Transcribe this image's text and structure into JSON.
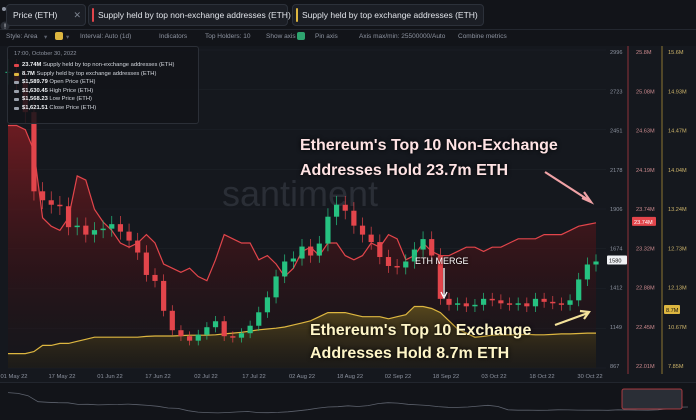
{
  "tabs": [
    {
      "label": "Price (ETH)",
      "color": "#9aa0ab"
    },
    {
      "label": "Supply held by top non-exchange addresses (ETH)",
      "color": "#e2454b"
    },
    {
      "label": "Supply held by top exchange addresses (ETH)",
      "color": "#ddb640"
    }
  ],
  "toolbar": {
    "style": "Style: Area",
    "interval": "Interval: Auto (1d)",
    "indicators": "Indicators",
    "top_holders": "Top Holders: 10",
    "show_axis": "Show axis",
    "pin_axis": "Pin axis",
    "axis_minmax": "Axis max/min: 25500000/Auto",
    "combine": "Combine metrics"
  },
  "legend": {
    "date": "17:00, October 30, 2022",
    "rows": [
      {
        "value": "23.74M",
        "label": "Supply held by top non-exchange addresses (ETH)",
        "color": "#e2454b"
      },
      {
        "value": "8.7M",
        "label": "Supply held by top exchange addresses (ETH)",
        "color": "#ddb640"
      },
      {
        "value": "$1,589.79",
        "label": "Open Price (ETH)",
        "color": "#9aa0ab"
      },
      {
        "value": "$1,630.45",
        "label": "High Price (ETH)",
        "color": "#9aa0ab"
      },
      {
        "value": "$1,568.23",
        "label": "Low Price (ETH)",
        "color": "#9aa0ab"
      },
      {
        "value": "$1,621.51",
        "label": "Close Price (ETH)",
        "color": "#9aa0ab"
      }
    ]
  },
  "watermark": "santiment",
  "annotations": {
    "non_exchange": [
      "Ethereum's Top 10 Non-Exchange",
      "Addresses Hold 23.7m ETH"
    ],
    "exchange": [
      "Ethereum's Top 10 Exchange",
      "Addresses Hold 8.7m ETH"
    ],
    "merge": "ETH MERGE"
  },
  "chart_data": {
    "type": "line",
    "x_ticks": [
      "01 May 22",
      "17 May 22",
      "01 Jun 22",
      "17 Jun 22",
      "02 Jul 22",
      "17 Jul 22",
      "02 Aug 22",
      "18 Aug 22",
      "02 Sep 22",
      "18 Sep 22",
      "03 Oct 22",
      "18 Oct 22",
      "30 Oct 22"
    ],
    "price_axis_ticks": [
      "2996",
      "2723",
      "2451",
      "2178",
      "1906",
      "1674",
      "1412",
      "1149",
      "867"
    ],
    "price_current": "1580",
    "non_exchange_axis_ticks": [
      "25.8M",
      "25.08M",
      "24.63M",
      "24.19M",
      "23.74M",
      "23.32M",
      "22.88M",
      "22.45M",
      "22.01M"
    ],
    "non_exchange_current": "23.74M",
    "exchange_axis_ticks": [
      "15.6M",
      "14.93M",
      "14.47M",
      "14.04M",
      "13.24M",
      "12.73M",
      "12.13M",
      "10.67M",
      "7.85M"
    ],
    "exchange_current": "8.7M",
    "series": [
      {
        "name": "Price (ETH)",
        "color": "#c9cdd6",
        "values": [
          2850,
          2780,
          2580,
          2050,
          1990,
          1960,
          1950,
          1810,
          1820,
          1760,
          1790,
          1800,
          1830,
          1780,
          1720,
          1640,
          1490,
          1450,
          1250,
          1120,
          1080,
          1050,
          1090,
          1140,
          1180,
          1080,
          1070,
          1100,
          1150,
          1240,
          1340,
          1480,
          1580,
          1600,
          1680,
          1620,
          1700,
          1880,
          1960,
          1920,
          1820,
          1760,
          1710,
          1610,
          1550,
          1540,
          1580,
          1660,
          1730,
          1620,
          1330,
          1290,
          1300,
          1280,
          1290,
          1330,
          1320,
          1300,
          1290,
          1300,
          1280,
          1330,
          1310,
          1300,
          1290,
          1320,
          1460,
          1560,
          1580
        ]
      },
      {
        "name": "Supply held by top non-exchange addresses (ETH)",
        "color": "#e2454b",
        "values": [
          24.9,
          24.9,
          24.85,
          24.6,
          23.8,
          23.7,
          23.65,
          23.8,
          24.3,
          24.25,
          23.9,
          23.75,
          23.65,
          23.5,
          23.45,
          23.5,
          23.6,
          23.5,
          23.25,
          23.2,
          23.15,
          23.2,
          23.1,
          23.05,
          23.3,
          23.6,
          23.55,
          23.5,
          23.5,
          23.3,
          23.35,
          23.25,
          23.1,
          23.2,
          23.4,
          23.45,
          23.35,
          23.5,
          23.5,
          23.35,
          23.3,
          23.35,
          23.5,
          23.45,
          23.6,
          23.55,
          23.3,
          23.35,
          23.5,
          23.4,
          23.35,
          23.35,
          23.4,
          23.45,
          23.45,
          23.4,
          23.45,
          23.45,
          23.5,
          23.55,
          23.55,
          23.55,
          23.6,
          23.6,
          23.6,
          23.65,
          23.7,
          23.72,
          23.74
        ]
      },
      {
        "name": "Supply held by top exchange addresses (ETH)",
        "color": "#ddb640",
        "values": [
          8.2,
          8.2,
          8.2,
          8.25,
          8.4,
          8.4,
          8.45,
          8.45,
          8.5,
          8.55,
          8.6,
          8.6,
          8.6,
          8.6,
          8.6,
          8.6,
          8.62,
          8.63,
          8.63,
          8.63,
          8.64,
          8.65,
          8.65,
          8.65,
          8.66,
          8.68,
          8.7,
          8.72,
          8.75,
          8.78,
          8.8,
          8.82,
          8.85,
          8.9,
          8.95,
          9.0,
          9.1,
          9.2,
          9.2,
          9.2,
          9.15,
          9.1,
          9.1,
          9.1,
          9.05,
          9.1,
          9.15,
          9.35,
          9.35,
          9.3,
          9.2,
          9.0,
          8.8,
          8.7,
          8.6,
          8.62,
          8.65,
          8.66,
          8.66,
          8.66,
          8.67,
          8.66,
          8.66,
          8.67,
          8.68,
          8.68,
          8.69,
          8.7,
          8.7
        ]
      }
    ]
  }
}
